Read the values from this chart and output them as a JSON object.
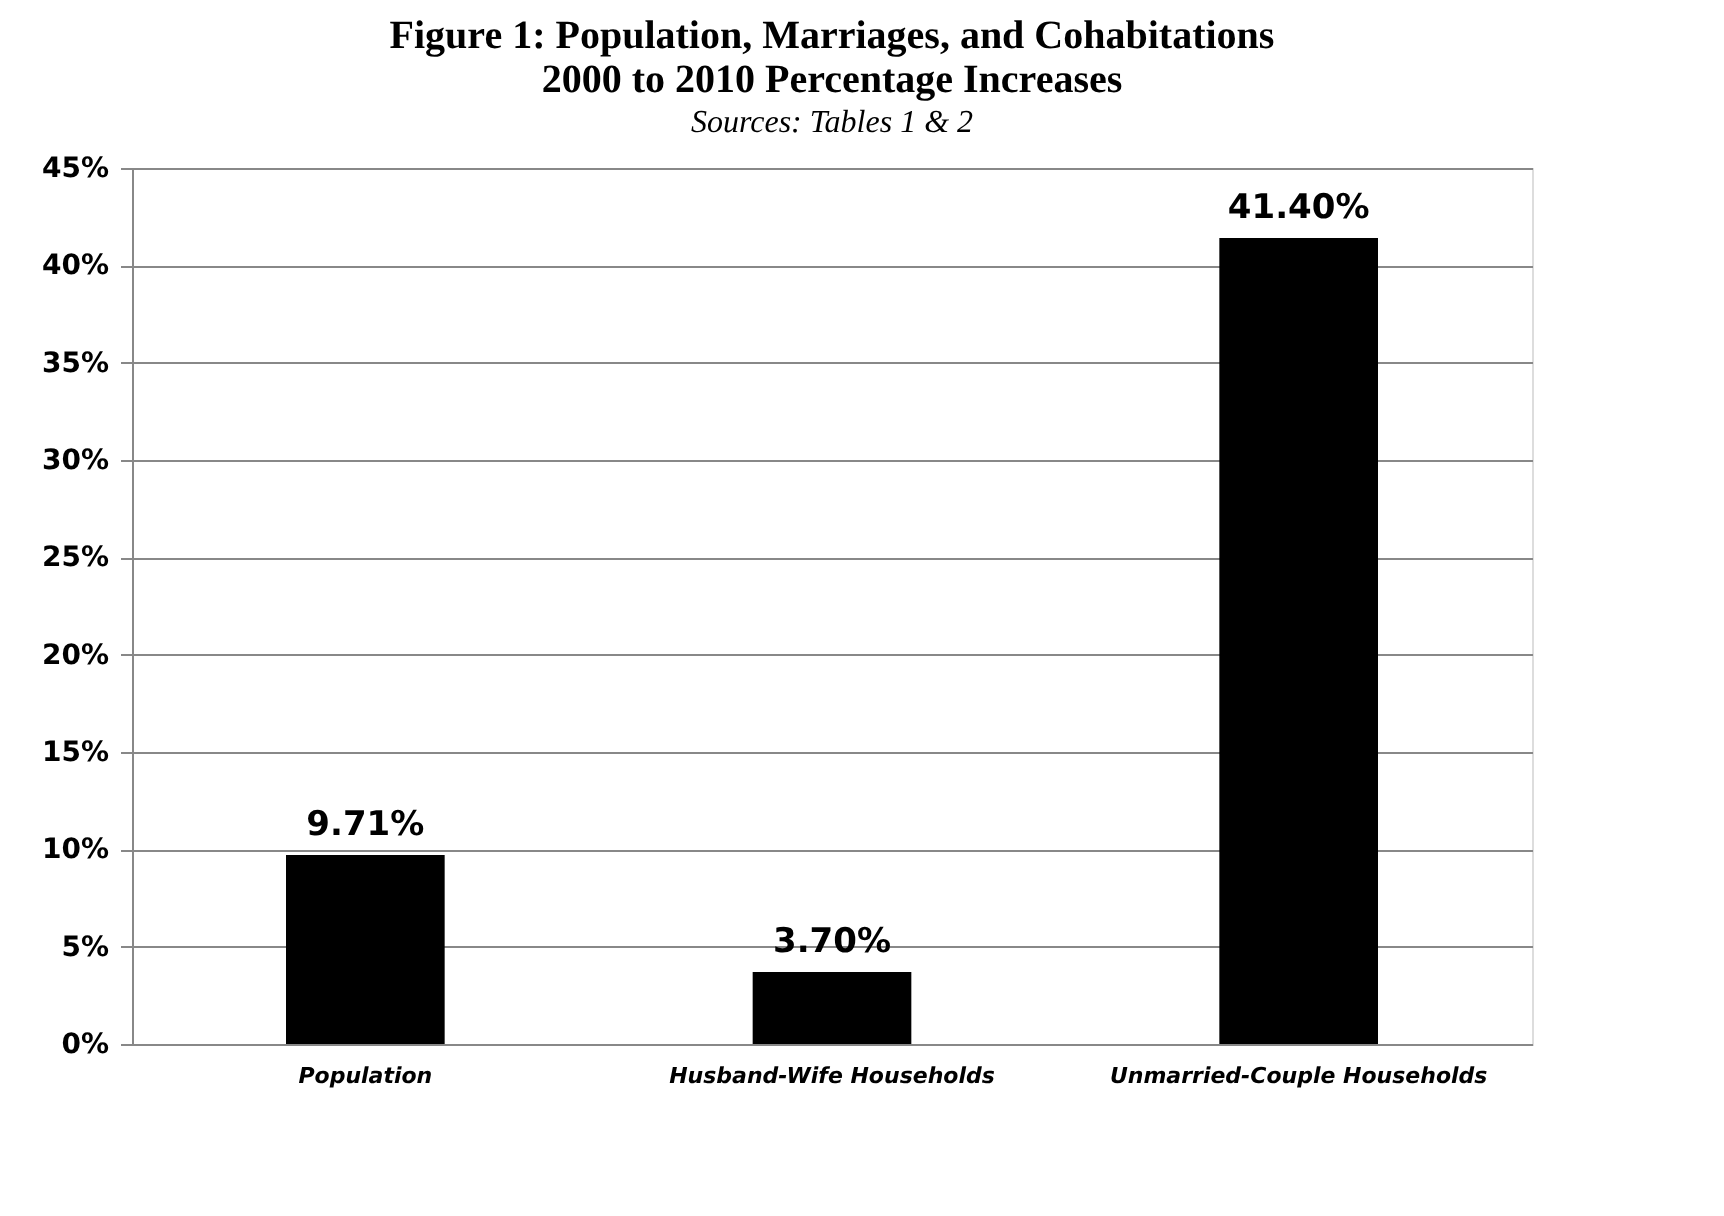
{
  "chart_data": {
    "type": "bar",
    "title": [
      "Figure 1: Population, Marriages, and Cohabitations",
      "2000 to 2010 Percentage Increases"
    ],
    "subtitle": "Sources: Tables 1 & 2",
    "categories": [
      "Population",
      "Husband-Wife Households",
      "Unmarried-Couple Households"
    ],
    "values": [
      9.71,
      3.7,
      41.4
    ],
    "color": "#000000",
    "value_labels": [
      "9.71%",
      "3.70%",
      "41.40%"
    ],
    "ylim": [
      0,
      45
    ],
    "yticks": [
      {
        "value": 0,
        "label": "0%"
      },
      {
        "value": 5,
        "label": "5%"
      },
      {
        "value": 10,
        "label": "10%"
      },
      {
        "value": 15,
        "label": "15%"
      },
      {
        "value": 20,
        "label": "20%"
      },
      {
        "value": 25,
        "label": "25%"
      },
      {
        "value": 30,
        "label": "30%"
      },
      {
        "value": 35,
        "label": "35%"
      },
      {
        "value": 40,
        "label": "40%"
      },
      {
        "value": 45,
        "label": "45%"
      }
    ],
    "grid": "y"
  }
}
